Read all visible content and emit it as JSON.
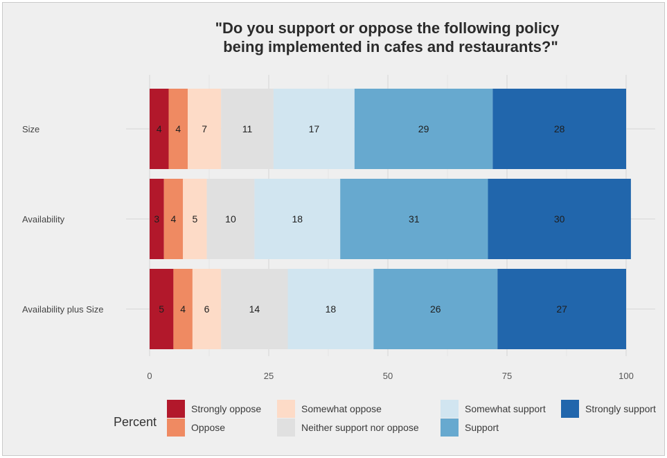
{
  "chart_data": {
    "type": "bar",
    "orientation": "horizontal",
    "stacked": true,
    "title_lines": [
      "\"Do you support or oppose the following policy",
      "being implemented in cafes and restaurants?\""
    ],
    "categories": [
      "Size",
      "Availability",
      "Availability plus Size"
    ],
    "series": [
      {
        "name": "Strongly oppose",
        "color": "#b2182b",
        "values": [
          4,
          3,
          5
        ]
      },
      {
        "name": "Oppose",
        "color": "#ef8a62",
        "values": [
          4,
          4,
          4
        ]
      },
      {
        "name": "Somewhat oppose",
        "color": "#fddbc7",
        "values": [
          7,
          5,
          6
        ]
      },
      {
        "name": "Neither support nor oppose",
        "color": "#e0e0e0",
        "values": [
          11,
          10,
          14
        ]
      },
      {
        "name": "Somewhat support",
        "color": "#d1e5f0",
        "values": [
          17,
          18,
          18
        ]
      },
      {
        "name": "Support",
        "color": "#67a9cf",
        "values": [
          29,
          31,
          26
        ]
      },
      {
        "name": "Strongly support",
        "color": "#2166ac",
        "values": [
          28,
          30,
          27
        ]
      }
    ],
    "xlim": [
      0,
      100
    ],
    "xticks": [
      0,
      25,
      50,
      75,
      100
    ],
    "legend_title": "Percent",
    "legend_position": "bottom",
    "grid": true
  }
}
